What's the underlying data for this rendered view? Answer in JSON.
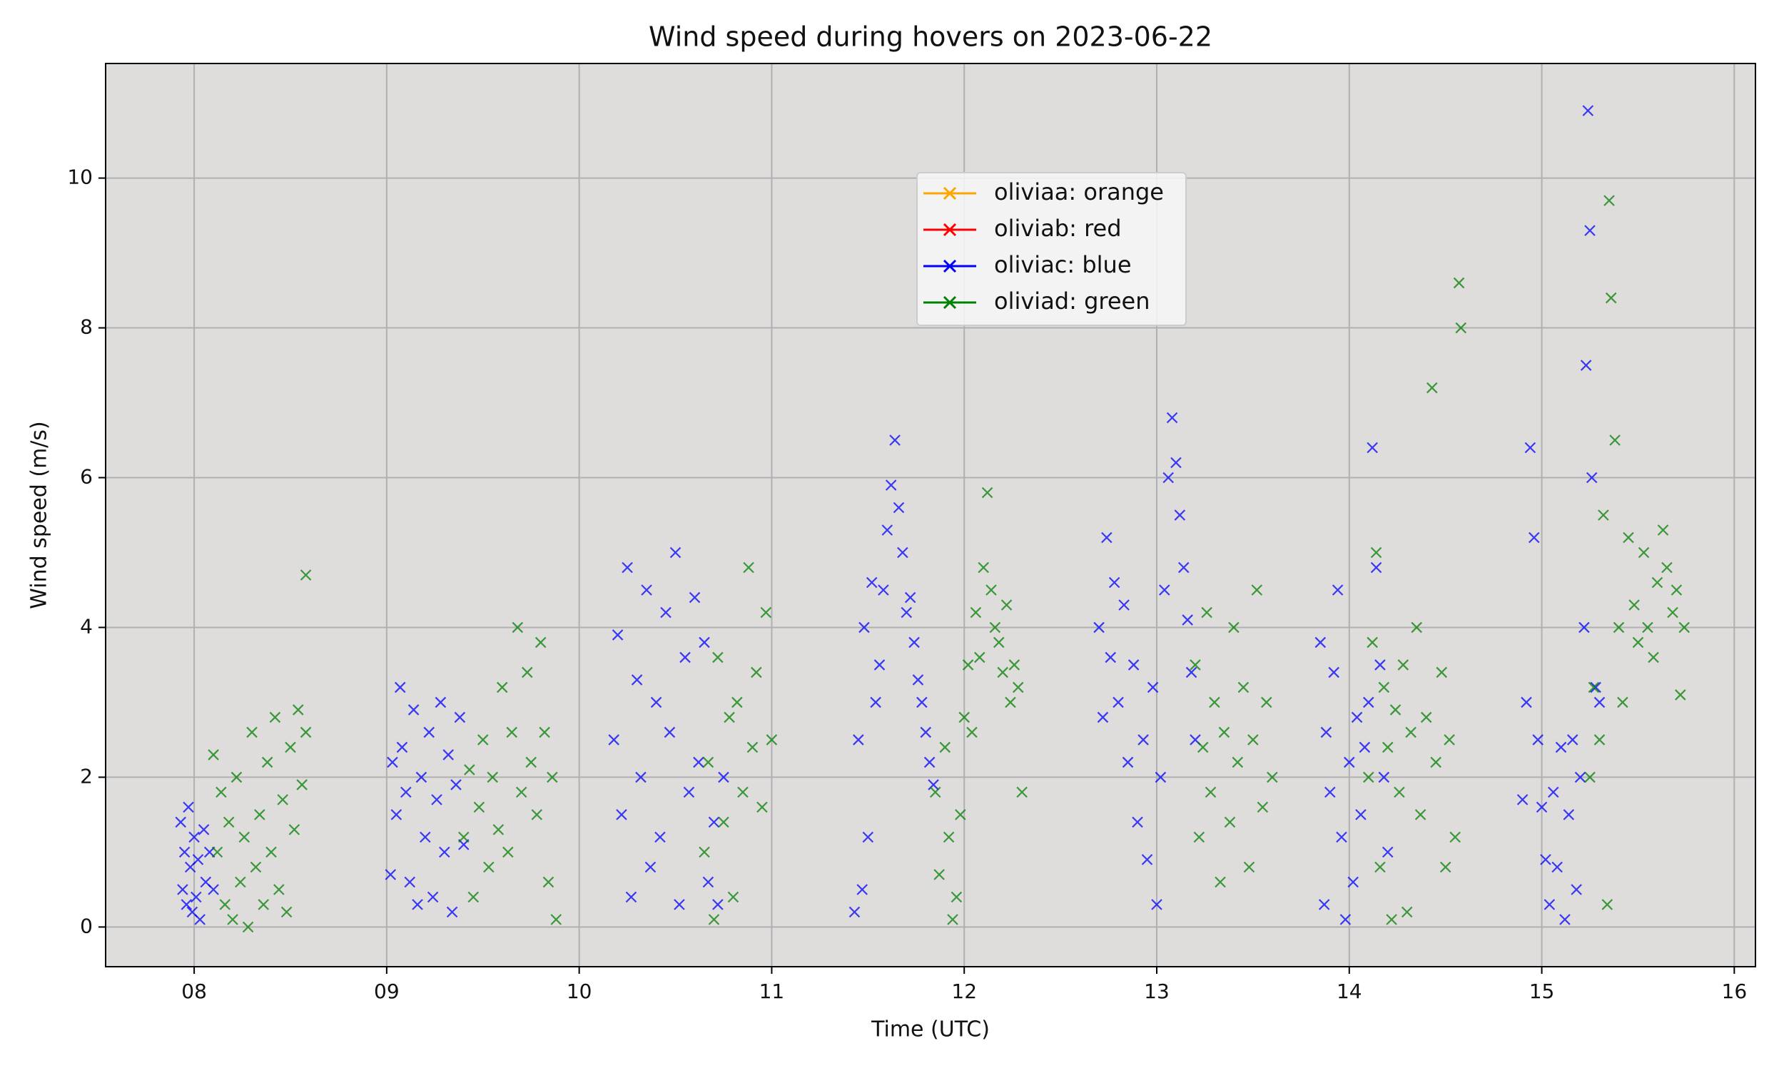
{
  "chart_data": {
    "type": "scatter",
    "title": "Wind speed during hovers on 2023-06-22",
    "x_label": "Time (UTC)",
    "y_label": "Wind speed (m/s)",
    "xlim": [
      7.54,
      16.11
    ],
    "ylim": [
      -0.53,
      11.53
    ],
    "xticks": [
      {
        "value": 8,
        "label": "08"
      },
      {
        "value": 9,
        "label": "09"
      },
      {
        "value": 10,
        "label": "10"
      },
      {
        "value": 11,
        "label": "11"
      },
      {
        "value": 12,
        "label": "12"
      },
      {
        "value": 13,
        "label": "13"
      },
      {
        "value": 14,
        "label": "14"
      },
      {
        "value": 15,
        "label": "15"
      },
      {
        "value": 16,
        "label": "16"
      }
    ],
    "yticks": [
      0,
      2,
      4,
      6,
      8,
      10
    ],
    "grid": true,
    "legend": "upper center",
    "marker": "x",
    "series": [
      {
        "name": "oliviaa: orange",
        "color": "#ffa500",
        "x": [],
        "values": []
      },
      {
        "name": "oliviab: red",
        "color": "#ff0000",
        "x": [],
        "values": []
      },
      {
        "name": "oliviac: blue",
        "color": "#0000ff",
        "x": [
          7.93,
          7.94,
          7.95,
          7.96,
          7.97,
          7.98,
          7.99,
          8.0,
          8.01,
          8.02,
          8.03,
          8.05,
          8.06,
          8.08,
          8.1,
          9.02,
          9.03,
          9.05,
          9.07,
          9.08,
          9.1,
          9.12,
          9.14,
          9.16,
          9.18,
          9.2,
          9.22,
          9.24,
          9.26,
          9.28,
          9.3,
          9.32,
          9.34,
          9.36,
          9.38,
          9.4,
          10.18,
          10.2,
          10.22,
          10.25,
          10.27,
          10.3,
          10.32,
          10.35,
          10.37,
          10.4,
          10.42,
          10.45,
          10.47,
          10.5,
          10.52,
          10.55,
          10.57,
          10.6,
          10.62,
          10.65,
          10.67,
          10.7,
          10.72,
          10.75,
          11.43,
          11.45,
          11.47,
          11.48,
          11.5,
          11.52,
          11.54,
          11.56,
          11.58,
          11.6,
          11.62,
          11.64,
          11.66,
          11.68,
          11.7,
          11.72,
          11.74,
          11.76,
          11.78,
          11.8,
          11.82,
          11.84,
          12.7,
          12.72,
          12.74,
          12.76,
          12.78,
          12.8,
          12.83,
          12.85,
          12.88,
          12.9,
          12.93,
          12.95,
          12.98,
          13.0,
          13.02,
          13.04,
          13.06,
          13.08,
          13.1,
          13.12,
          13.14,
          13.16,
          13.18,
          13.2,
          13.85,
          13.87,
          13.88,
          13.9,
          13.92,
          13.94,
          13.96,
          13.98,
          14.0,
          14.02,
          14.04,
          14.06,
          14.08,
          14.1,
          14.12,
          14.14,
          14.16,
          14.18,
          14.2,
          14.9,
          14.92,
          14.94,
          14.96,
          14.98,
          15.0,
          15.02,
          15.04,
          15.06,
          15.08,
          15.1,
          15.12,
          15.14,
          15.16,
          15.18,
          15.2,
          15.22,
          15.23,
          15.24,
          15.25,
          15.26,
          15.28,
          15.3
        ],
        "values": [
          1.4,
          0.5,
          1.0,
          0.3,
          1.6,
          0.8,
          0.2,
          1.2,
          0.4,
          0.9,
          0.1,
          1.3,
          0.6,
          1.0,
          0.5,
          0.7,
          2.2,
          1.5,
          3.2,
          2.4,
          1.8,
          0.6,
          2.9,
          0.3,
          2.0,
          1.2,
          2.6,
          0.4,
          1.7,
          3.0,
          1.0,
          2.3,
          0.2,
          1.9,
          2.8,
          1.1,
          2.5,
          3.9,
          1.5,
          4.8,
          0.4,
          3.3,
          2.0,
          4.5,
          0.8,
          3.0,
          1.2,
          4.2,
          2.6,
          5.0,
          0.3,
          3.6,
          1.8,
          4.4,
          2.2,
          3.8,
          0.6,
          1.4,
          0.3,
          2.0,
          0.2,
          2.5,
          0.5,
          4.0,
          1.2,
          4.6,
          3.0,
          3.5,
          4.5,
          5.3,
          5.9,
          6.5,
          5.6,
          5.0,
          4.2,
          4.4,
          3.8,
          3.3,
          3.0,
          2.6,
          2.2,
          1.9,
          4.0,
          2.8,
          5.2,
          3.6,
          4.6,
          3.0,
          4.3,
          2.2,
          3.5,
          1.4,
          2.5,
          0.9,
          3.2,
          0.3,
          2.0,
          4.5,
          6.0,
          6.8,
          6.2,
          5.5,
          4.8,
          4.1,
          3.4,
          2.5,
          3.8,
          0.3,
          2.6,
          1.8,
          3.4,
          4.5,
          1.2,
          0.1,
          2.2,
          0.6,
          2.8,
          1.5,
          2.4,
          3.0,
          6.4,
          4.8,
          3.5,
          2.0,
          1.0,
          1.7,
          3.0,
          6.4,
          5.2,
          2.5,
          1.6,
          0.9,
          0.3,
          1.8,
          0.8,
          2.4,
          0.1,
          1.5,
          2.5,
          0.5,
          2.0,
          4.0,
          7.5,
          10.9,
          9.3,
          6.0,
          3.2,
          3.0
        ]
      },
      {
        "name": "oliviad: green",
        "color": "#008000",
        "x": [
          8.1,
          8.12,
          8.14,
          8.16,
          8.18,
          8.2,
          8.22,
          8.24,
          8.26,
          8.28,
          8.3,
          8.32,
          8.34,
          8.36,
          8.38,
          8.4,
          8.42,
          8.44,
          8.46,
          8.48,
          8.5,
          8.52,
          8.54,
          8.56,
          8.58,
          8.58,
          9.4,
          9.43,
          9.45,
          9.48,
          9.5,
          9.53,
          9.55,
          9.58,
          9.6,
          9.63,
          9.65,
          9.68,
          9.7,
          9.73,
          9.75,
          9.78,
          9.8,
          9.82,
          9.84,
          9.86,
          9.88,
          10.65,
          10.67,
          10.7,
          10.72,
          10.75,
          10.78,
          10.8,
          10.82,
          10.85,
          10.88,
          10.9,
          10.92,
          10.95,
          10.97,
          11.0,
          11.85,
          11.87,
          11.9,
          11.92,
          11.94,
          11.96,
          11.98,
          12.0,
          12.02,
          12.04,
          12.06,
          12.08,
          12.1,
          12.12,
          12.14,
          12.16,
          12.18,
          12.2,
          12.22,
          12.24,
          12.26,
          12.28,
          12.3,
          13.2,
          13.22,
          13.24,
          13.26,
          13.28,
          13.3,
          13.33,
          13.35,
          13.38,
          13.4,
          13.42,
          13.45,
          13.48,
          13.5,
          13.52,
          13.55,
          13.57,
          13.6,
          14.1,
          14.12,
          14.14,
          14.16,
          14.18,
          14.2,
          14.22,
          14.24,
          14.26,
          14.28,
          14.3,
          14.32,
          14.35,
          14.37,
          14.4,
          14.43,
          14.45,
          14.48,
          14.5,
          14.52,
          14.55,
          14.57,
          14.58,
          15.25,
          15.27,
          15.3,
          15.32,
          15.34,
          15.35,
          15.36,
          15.38,
          15.4,
          15.42,
          15.45,
          15.48,
          15.5,
          15.53,
          15.55,
          15.58,
          15.6,
          15.63,
          15.65,
          15.68,
          15.7,
          15.72,
          15.74
        ],
        "values": [
          2.3,
          1.0,
          1.8,
          0.3,
          1.4,
          0.1,
          2.0,
          0.6,
          1.2,
          0.0,
          2.6,
          0.8,
          1.5,
          0.3,
          2.2,
          1.0,
          2.8,
          0.5,
          1.7,
          0.2,
          2.4,
          1.3,
          2.9,
          1.9,
          2.6,
          4.7,
          1.2,
          2.1,
          0.4,
          1.6,
          2.5,
          0.8,
          2.0,
          1.3,
          3.2,
          1.0,
          2.6,
          4.0,
          1.8,
          3.4,
          2.2,
          1.5,
          3.8,
          2.6,
          0.6,
          2.0,
          0.1,
          1.0,
          2.2,
          0.1,
          3.6,
          1.4,
          2.8,
          0.4,
          3.0,
          1.8,
          4.8,
          2.4,
          3.4,
          1.6,
          4.2,
          2.5,
          1.8,
          0.7,
          2.4,
          1.2,
          0.1,
          0.4,
          1.5,
          2.8,
          3.5,
          2.6,
          4.2,
          3.6,
          4.8,
          5.8,
          4.5,
          4.0,
          3.8,
          3.4,
          4.3,
          3.0,
          3.5,
          3.2,
          1.8,
          3.5,
          1.2,
          2.4,
          4.2,
          1.8,
          3.0,
          0.6,
          2.6,
          1.4,
          4.0,
          2.2,
          3.2,
          0.8,
          2.5,
          4.5,
          1.6,
          3.0,
          2.0,
          2.0,
          3.8,
          5.0,
          0.8,
          3.2,
          2.4,
          0.1,
          2.9,
          1.8,
          3.5,
          0.2,
          2.6,
          4.0,
          1.5,
          2.8,
          7.2,
          2.2,
          3.4,
          0.8,
          2.5,
          1.2,
          8.6,
          8.0,
          2.0,
          3.2,
          2.5,
          5.5,
          0.3,
          9.7,
          8.4,
          6.5,
          4.0,
          3.0,
          5.2,
          4.3,
          3.8,
          5.0,
          4.0,
          3.6,
          4.6,
          5.3,
          4.8,
          4.2,
          4.5,
          3.1,
          4.0
        ]
      }
    ]
  }
}
